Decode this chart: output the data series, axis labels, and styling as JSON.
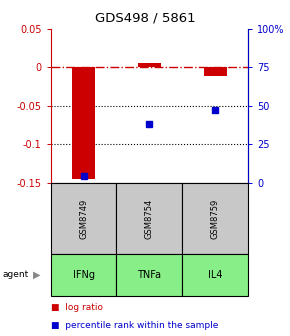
{
  "title": "GDS498 / 5861",
  "samples": [
    "GSM8749",
    "GSM8754",
    "GSM8759"
  ],
  "agents": [
    "IFNg",
    "TNFa",
    "IL4"
  ],
  "log_ratios": [
    -0.145,
    0.005,
    -0.012
  ],
  "percentile_ranks": [
    4.5,
    38.0,
    47.0
  ],
  "ylim_left": [
    -0.15,
    0.05
  ],
  "ylim_right": [
    0,
    100
  ],
  "yticks_left": [
    0.05,
    0,
    -0.05,
    -0.1,
    -0.15
  ],
  "yticks_left_labels": [
    "0.05",
    "0",
    "-0.05",
    "-0.1",
    "-0.15"
  ],
  "yticks_right": [
    100,
    75,
    50,
    25,
    0
  ],
  "yticks_right_labels": [
    "100%",
    "75",
    "50",
    "25",
    "0"
  ],
  "left_axis_color": "#cc0000",
  "right_axis_color": "#0000cc",
  "bar_color": "#cc0000",
  "square_color": "#0000cc",
  "sample_box_color": "#c8c8c8",
  "agent_box_color": "#88ee88",
  "grid_color": "#000000",
  "dashed_zero_color": "#cc0000",
  "background_color": "#ffffff",
  "title_fontsize": 9.5,
  "tick_fontsize": 7,
  "label_fontsize": 7,
  "legend_fontsize": 6.5
}
